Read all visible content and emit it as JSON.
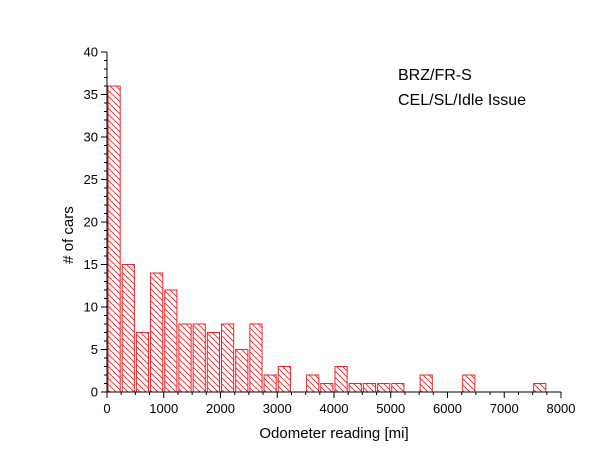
{
  "chart_data": {
    "type": "bar",
    "title": "",
    "xlabel": "Odometer reading [mi]",
    "ylabel": "# of cars",
    "xlim": [
      0,
      8000
    ],
    "ylim": [
      0,
      40
    ],
    "xticks": [
      0,
      1000,
      2000,
      3000,
      4000,
      5000,
      6000,
      7000,
      8000
    ],
    "yticks": [
      0,
      5,
      10,
      15,
      20,
      25,
      30,
      35,
      40
    ],
    "grid": false,
    "bin_width": 250,
    "bar_color": "#e8262b",
    "annotations": [
      "BRZ/FR-S",
      "CEL/SL/Idle Issue"
    ],
    "bins": [
      {
        "start": 0,
        "end": 250,
        "count": 36
      },
      {
        "start": 250,
        "end": 500,
        "count": 15
      },
      {
        "start": 500,
        "end": 750,
        "count": 7
      },
      {
        "start": 750,
        "end": 1000,
        "count": 14
      },
      {
        "start": 1000,
        "end": 1250,
        "count": 12
      },
      {
        "start": 1250,
        "end": 1500,
        "count": 8
      },
      {
        "start": 1500,
        "end": 1750,
        "count": 8
      },
      {
        "start": 1750,
        "end": 2000,
        "count": 7
      },
      {
        "start": 2000,
        "end": 2250,
        "count": 8
      },
      {
        "start": 2250,
        "end": 2500,
        "count": 5
      },
      {
        "start": 2500,
        "end": 2750,
        "count": 8
      },
      {
        "start": 2750,
        "end": 3000,
        "count": 2
      },
      {
        "start": 3000,
        "end": 3250,
        "count": 3
      },
      {
        "start": 3500,
        "end": 3750,
        "count": 2
      },
      {
        "start": 3750,
        "end": 4000,
        "count": 1
      },
      {
        "start": 4000,
        "end": 4250,
        "count": 3
      },
      {
        "start": 4250,
        "end": 4500,
        "count": 1
      },
      {
        "start": 4500,
        "end": 4750,
        "count": 1
      },
      {
        "start": 4750,
        "end": 5000,
        "count": 1
      },
      {
        "start": 5000,
        "end": 5250,
        "count": 1
      },
      {
        "start": 5500,
        "end": 5750,
        "count": 2
      },
      {
        "start": 6250,
        "end": 6500,
        "count": 2
      },
      {
        "start": 7500,
        "end": 7750,
        "count": 1
      }
    ]
  }
}
